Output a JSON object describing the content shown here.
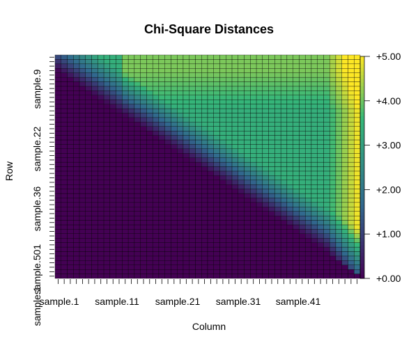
{
  "chart_data": {
    "type": "heatmap",
    "title": "Chi-Square Distances",
    "xlabel": "Column",
    "ylabel": "Row",
    "n_cols": 50,
    "n_rows": 50,
    "x_tick_labels": [
      "sample.1",
      "sample.11",
      "sample.21",
      "sample.31",
      "sample.41"
    ],
    "y_tick_labels": [
      "sample.9",
      "sample.22",
      "sample.36",
      "sample.501",
      "sample.1"
    ],
    "colorbar": {
      "min": 0,
      "max": 5,
      "tick_labels": [
        "+0.00",
        "+1.00",
        "+2.00",
        "+3.00",
        "+4.00",
        "+5.00"
      ]
    },
    "grid": true,
    "colors": {
      "low": "#440154",
      "mid_low": "#31688e",
      "mid": "#35b779",
      "high": "#fde725",
      "cell_border": "#000000"
    }
  }
}
